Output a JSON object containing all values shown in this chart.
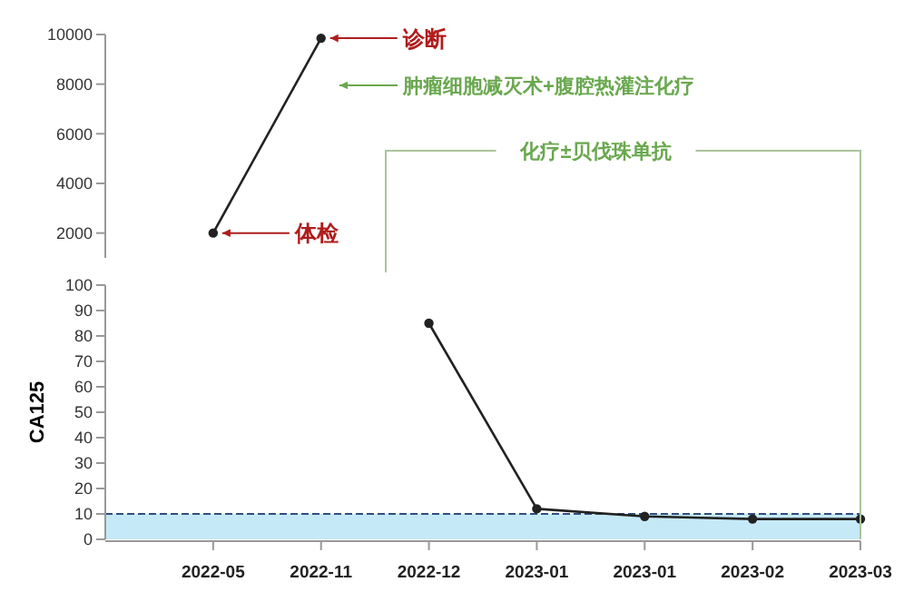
{
  "chart_data": [
    {
      "type": "line",
      "categories": [
        "2022-05",
        "2022-11",
        "2022-12",
        "2023-01",
        "2023-01",
        "2023-02",
        "2023-03"
      ],
      "values": [
        2000,
        9850,
        null,
        null,
        null,
        null,
        null
      ],
      "color": "#222222",
      "marker": "circle",
      "ylim": [
        1000,
        10000
      ],
      "yticks": [
        2000,
        4000,
        6000,
        8000,
        10000
      ],
      "tick_labels": "y",
      "annotations": [
        {
          "text": "诊断",
          "x": "2022-11",
          "y": 9850
        },
        {
          "text": "体检",
          "x": "2022-05",
          "y": 2000
        },
        "肿瘤细胞减灭术+腹腔热灌注化疗",
        "化疗±贝伐珠单抗"
      ]
    },
    {
      "type": "line",
      "categories": [
        "2022-05",
        "2022-11",
        "2022-12",
        "2023-01",
        "2023-01",
        "2023-02",
        "2023-03"
      ],
      "values": [
        null,
        null,
        85,
        12,
        9,
        8,
        8
      ],
      "color": "#222222",
      "marker": "circle",
      "ylim": [
        0,
        100
      ],
      "yticks": [
        0,
        10,
        20,
        30,
        40,
        50,
        60,
        70,
        80,
        90,
        100
      ],
      "ylabel": "CA125",
      "ref_lines": [
        {
          "axis": "y",
          "value": 10,
          "color": "#2f4f7f",
          "line_style": "dashed"
        }
      ],
      "bands": [
        {
          "axis": "y",
          "from": 0,
          "to": 10,
          "color": "#c6e9f7"
        }
      ]
    }
  ]
}
